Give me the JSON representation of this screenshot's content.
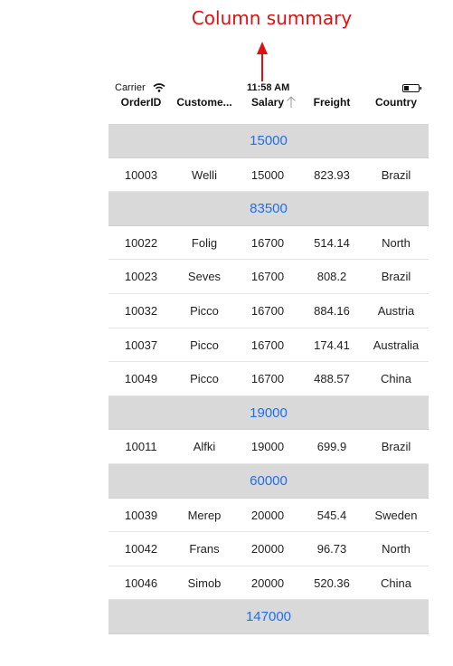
{
  "annotation": {
    "label": "Column summary"
  },
  "status_bar": {
    "carrier": "Carrier",
    "time": "11:58 AM"
  },
  "columns": [
    "OrderID",
    "Custome...",
    "Salary",
    "Freight",
    "Country"
  ],
  "rows": [
    {
      "type": "group",
      "caption": "15000"
    },
    {
      "type": "data",
      "cells": [
        "10003",
        "Welli",
        "15000",
        "823.93",
        "Brazil"
      ]
    },
    {
      "type": "group",
      "caption": "83500"
    },
    {
      "type": "data",
      "cells": [
        "10022",
        "Folig",
        "16700",
        "514.14",
        "North"
      ]
    },
    {
      "type": "data",
      "cells": [
        "10023",
        "Seves",
        "16700",
        "808.2",
        "Brazil"
      ]
    },
    {
      "type": "data",
      "cells": [
        "10032",
        "Picco",
        "16700",
        "884.16",
        "Austria"
      ]
    },
    {
      "type": "data",
      "cells": [
        "10037",
        "Picco",
        "16700",
        "174.41",
        "Australia"
      ]
    },
    {
      "type": "data",
      "cells": [
        "10049",
        "Picco",
        "16700",
        "488.57",
        "China"
      ]
    },
    {
      "type": "group",
      "caption": "19000"
    },
    {
      "type": "data",
      "cells": [
        "10011",
        "Alfki",
        "19000",
        "699.9",
        "Brazil"
      ]
    },
    {
      "type": "group",
      "caption": "60000"
    },
    {
      "type": "data",
      "cells": [
        "10039",
        "Merep",
        "20000",
        "545.4",
        "Sweden"
      ]
    },
    {
      "type": "data",
      "cells": [
        "10042",
        "Frans",
        "20000",
        "96.73",
        "North"
      ]
    },
    {
      "type": "data",
      "cells": [
        "10046",
        "Simob",
        "20000",
        "520.36",
        "China"
      ]
    },
    {
      "type": "group",
      "caption": "147000"
    }
  ],
  "colors": {
    "annotation": "#e01010",
    "group_caption": "#1f6fe6",
    "group_bg": "#d9d9d9"
  },
  "icons": [
    "wifi-icon",
    "battery-icon",
    "sort-ascending-icon",
    "arrow-up-icon"
  ]
}
